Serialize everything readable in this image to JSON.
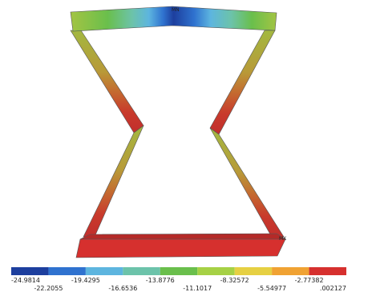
{
  "annotations": {
    "min": "MN",
    "max": "MX"
  },
  "legend": {
    "labels": [
      "-24.9814",
      "-22.2055",
      "-19.4295",
      "-16.6536",
      "-13.8776",
      "-11.1017",
      "-8.32572",
      "-5.54977",
      "-2.77382",
      ".002127"
    ],
    "colors": [
      "#1d3f9e",
      "#2f72cf",
      "#5db5df",
      "#6cc3aa",
      "#6abf4c",
      "#a6d145",
      "#e6d043",
      "#f0a233",
      "#d6302e"
    ]
  }
}
